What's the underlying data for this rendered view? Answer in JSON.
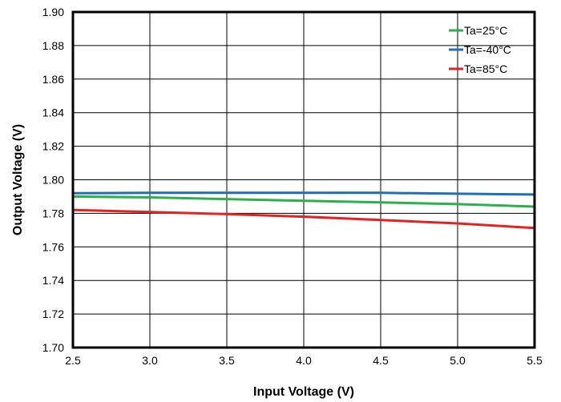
{
  "chart_data": {
    "type": "line",
    "title": "",
    "xlabel": "Input Voltage (V)",
    "ylabel": "Output Voltage (V)",
    "xlim": [
      2.5,
      5.5
    ],
    "ylim": [
      1.7,
      1.9
    ],
    "x_ticks": [
      "2.5",
      "3.0",
      "3.5",
      "4.0",
      "4.5",
      "5.0",
      "5.5"
    ],
    "y_ticks": [
      "1.70",
      "1.72",
      "1.74",
      "1.76",
      "1.78",
      "1.80",
      "1.82",
      "1.84",
      "1.86",
      "1.88",
      "1.90"
    ],
    "grid": true,
    "legend_position": "top-right",
    "series": [
      {
        "name": "Ta=25°C",
        "color": "#2db04b",
        "x": [
          2.5,
          3.0,
          3.5,
          4.0,
          4.5,
          5.0,
          5.5
        ],
        "y": [
          1.79,
          1.7895,
          1.7885,
          1.7875,
          1.7865,
          1.7855,
          1.784
        ]
      },
      {
        "name": "Ta=-40°C",
        "color": "#1f6fb4",
        "x": [
          2.5,
          3.0,
          3.5,
          4.0,
          4.5,
          5.0,
          5.5
        ],
        "y": [
          1.792,
          1.7922,
          1.7922,
          1.7922,
          1.7922,
          1.7917,
          1.7912
        ]
      },
      {
        "name": "Ta=85°C",
        "color": "#e02424",
        "x": [
          2.5,
          3.0,
          3.5,
          4.0,
          4.5,
          5.0,
          5.5
        ],
        "y": [
          1.782,
          1.7808,
          1.7795,
          1.778,
          1.776,
          1.774,
          1.7712
        ]
      }
    ]
  }
}
